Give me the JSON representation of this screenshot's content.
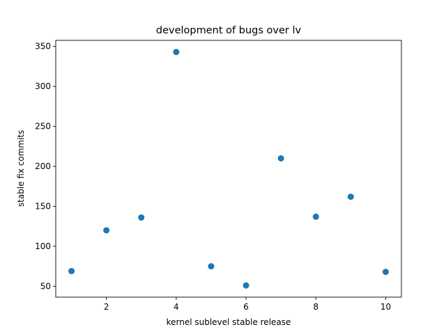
{
  "chart_data": {
    "type": "scatter",
    "title": "development of bugs over lv",
    "xlabel": "kernel sublevel stable release",
    "ylabel": "stable fix commits",
    "x": [
      1,
      2,
      3,
      4,
      5,
      6,
      7,
      8,
      9,
      10
    ],
    "y": [
      69,
      120,
      136,
      343,
      75,
      51,
      210,
      137,
      162,
      68
    ],
    "xlim": [
      0.55,
      10.45
    ],
    "ylim": [
      36.4,
      357.6
    ],
    "xticks": [
      2,
      4,
      6,
      8,
      10
    ],
    "yticks": [
      50,
      100,
      150,
      200,
      250,
      300,
      350
    ],
    "marker_color": "#1f77b4",
    "grid": false,
    "legend": "none"
  }
}
